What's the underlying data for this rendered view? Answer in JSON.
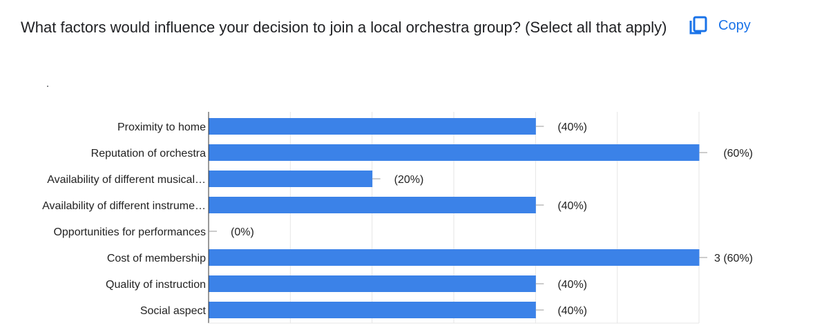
{
  "question": {
    "title": "What factors would influence your decision to join a local orchestra group? (Select all that apply)"
  },
  "copy_button": {
    "label": "Copy",
    "icon": "copy-icon",
    "color": "#1a73e8"
  },
  "chart_data": {
    "type": "bar",
    "orientation": "horizontal",
    "categories": [
      "Proximity to home",
      "Reputation of orchestra",
      "Availability of different musical…",
      "Availability of different instrume…",
      "Opportunities for performances",
      "Cost of membership",
      "Quality of instruction",
      "Social aspect"
    ],
    "values": [
      2,
      3,
      1,
      2,
      0,
      3,
      2,
      2
    ],
    "data_labels": [
      "(40%)",
      "(60%)",
      "(20%)",
      "(40%)",
      "(0%)",
      "3 (60%)",
      "(40%)",
      "(40%)"
    ],
    "xlim": [
      0,
      3
    ],
    "grid": true,
    "bar_color": "#3b82e8"
  }
}
